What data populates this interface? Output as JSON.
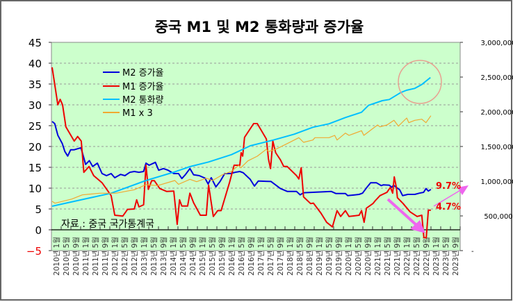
{
  "chart_data": {
    "type": "line",
    "title": "중국 M1 및 M2 통화량과 증가율",
    "source_note": "자료 : 중국 국가통계국",
    "x_labels": [
      "2010년 1월",
      "2010년 5월",
      "2010년 9월",
      "2011년 1월",
      "2011년 5월",
      "2011년 9월",
      "2012년 1월",
      "2012년 5월",
      "2012년 9월",
      "2013년 1월",
      "2013년 5월",
      "2013년 9월",
      "2014년 1월",
      "2014년 5월",
      "2014년 9월",
      "2015년 1월",
      "2015년 5월",
      "2015년 9월",
      "2016년 1월",
      "2016년 5월",
      "2016년 9월",
      "2017년 1월",
      "2017년 5월",
      "2017년 9월",
      "2018년 1월",
      "2018년 5월",
      "2018년 9월",
      "2019년 1월",
      "2019년 5월",
      "2019년 9월",
      "2020년 1월",
      "2020년 5월",
      "2020년 9월",
      "2021년 1월",
      "2021년 5월",
      "2021년 9월",
      "2022년 1월",
      "2022년 5월",
      "2022년 9월",
      "2023년 1월",
      "2023년 5월",
      "2023년 9월"
    ],
    "y_left": {
      "range": [
        -5,
        45
      ],
      "ticks": [
        45,
        40,
        35,
        30,
        25,
        20,
        15,
        10,
        5,
        0,
        -5
      ]
    },
    "y_right": {
      "range": [
        0,
        3000000
      ],
      "ticks": [
        "3,000,000",
        "2,500,000",
        "2,000,000",
        "1,500,000",
        "1,000,000",
        "500,000",
        "-"
      ]
    },
    "grid": true,
    "legend_position": "top-left",
    "series": [
      {
        "name": "M2 증가율",
        "axis": "left",
        "color": "#0000dd",
        "points": [
          [
            0,
            26
          ],
          [
            1,
            25.5
          ],
          [
            2.2,
            22.7
          ],
          [
            3.9,
            20.7
          ],
          [
            4.9,
            18.8
          ],
          [
            6,
            17.7
          ],
          [
            7.1,
            19.2
          ],
          [
            8.4,
            19.2
          ],
          [
            11.1,
            19.7
          ],
          [
            12.9,
            15.7
          ],
          [
            14.3,
            16.6
          ],
          [
            15.6,
            15.2
          ],
          [
            17.4,
            16
          ],
          [
            19.2,
            13.5
          ],
          [
            20.9,
            13
          ],
          [
            22.7,
            13.5
          ],
          [
            24.1,
            12.5
          ],
          [
            26.3,
            13.3
          ],
          [
            28,
            13
          ],
          [
            29.9,
            13.8
          ],
          [
            31.6,
            14
          ],
          [
            33.4,
            13.8
          ],
          [
            35.2,
            14
          ],
          [
            36.1,
            16
          ],
          [
            37.3,
            15.5
          ],
          [
            39.7,
            16.2
          ],
          [
            41,
            14.3
          ],
          [
            42.8,
            14.7
          ],
          [
            44.6,
            14.3
          ],
          [
            46.8,
            13.5
          ],
          [
            48.6,
            13.5
          ],
          [
            49.9,
            12.3
          ],
          [
            51.2,
            13.2
          ],
          [
            53,
            14.7
          ],
          [
            54.4,
            13.2
          ],
          [
            56.6,
            13
          ],
          [
            58.8,
            12.4
          ],
          [
            60,
            11
          ],
          [
            61.2,
            12.5
          ],
          [
            63,
            10.3
          ],
          [
            64.6,
            11.6
          ],
          [
            66.4,
            13.5
          ],
          [
            68.6,
            13.5
          ],
          [
            70.4,
            13.8
          ],
          [
            72.2,
            14
          ],
          [
            73.5,
            13.7
          ],
          [
            76.2,
            12.1
          ],
          [
            77.8,
            10.5
          ],
          [
            79.3,
            11.7
          ],
          [
            84.2,
            11.6
          ],
          [
            87.8,
            9.9
          ],
          [
            90.5,
            9.2
          ],
          [
            94,
            9.2
          ],
          [
            95.4,
            8.4
          ],
          [
            96.7,
            8.9
          ],
          [
            100.3,
            9
          ],
          [
            107.4,
            9.2
          ],
          [
            109.2,
            8.7
          ],
          [
            112.8,
            8.7
          ],
          [
            113.7,
            8.2
          ],
          [
            118.1,
            8.5
          ],
          [
            119.4,
            8.8
          ],
          [
            121.2,
            10.3
          ],
          [
            122.5,
            11.3
          ],
          [
            124.7,
            11.3
          ],
          [
            126.6,
            10.6
          ],
          [
            127.4,
            10.8
          ],
          [
            129.7,
            10.7
          ],
          [
            130.6,
            10.2
          ],
          [
            131.3,
            10.7
          ],
          [
            132.4,
            10.2
          ],
          [
            133.7,
            9.6
          ],
          [
            134.8,
            8.2
          ],
          [
            136.8,
            8.5
          ],
          [
            139.5,
            8.5
          ],
          [
            141.3,
            8.8
          ],
          [
            142.9,
            9
          ],
          [
            143.8,
            9.9
          ],
          [
            144.7,
            9.3
          ],
          [
            145.7,
            9.7
          ]
        ]
      },
      {
        "name": "M1 증가율",
        "axis": "left",
        "color": "#ee0000",
        "points": [
          [
            0,
            39
          ],
          [
            2.2,
            30
          ],
          [
            3.1,
            31.3
          ],
          [
            4,
            30
          ],
          [
            5.3,
            24.7
          ],
          [
            8.5,
            21.3
          ],
          [
            9.8,
            22.4
          ],
          [
            11.2,
            21.3
          ],
          [
            12.2,
            13.8
          ],
          [
            14.2,
            15.2
          ],
          [
            16,
            13
          ],
          [
            19.2,
            11.3
          ],
          [
            22.7,
            8.2
          ],
          [
            24.1,
            3.5
          ],
          [
            27.2,
            3.3
          ],
          [
            29,
            4.9
          ],
          [
            31.6,
            5
          ],
          [
            32.5,
            7.2
          ],
          [
            33.4,
            5.5
          ],
          [
            35.2,
            6
          ],
          [
            36.1,
            15.5
          ],
          [
            37,
            9.7
          ],
          [
            38.3,
            11.8
          ],
          [
            39.3,
            11.8
          ],
          [
            41.4,
            9.9
          ],
          [
            44.1,
            9.2
          ],
          [
            46.8,
            9.3
          ],
          [
            48.1,
            1.3
          ],
          [
            49,
            7.2
          ],
          [
            49.9,
            5.7
          ],
          [
            52.1,
            5.7
          ],
          [
            53,
            8.8
          ],
          [
            54.4,
            6.5
          ],
          [
            57,
            3.5
          ],
          [
            59.3,
            3.5
          ],
          [
            60.2,
            10.7
          ],
          [
            62,
            3.2
          ],
          [
            63.7,
            4.6
          ],
          [
            65,
            4.6
          ],
          [
            68.2,
            11.3
          ],
          [
            70,
            15.5
          ],
          [
            72.2,
            15.5
          ],
          [
            72.7,
            18.5
          ],
          [
            73.3,
            17.7
          ],
          [
            74,
            22.2
          ],
          [
            77.5,
            25.5
          ],
          [
            78.9,
            25.5
          ],
          [
            82.4,
            21.8
          ],
          [
            83.2,
            17
          ],
          [
            84,
            14.7
          ],
          [
            84.9,
            21.3
          ],
          [
            86,
            18.5
          ],
          [
            87.8,
            16.8
          ],
          [
            89.1,
            15.2
          ],
          [
            90.4,
            15.2
          ],
          [
            94,
            13
          ],
          [
            94.9,
            12.2
          ],
          [
            95.8,
            14.9
          ],
          [
            96.7,
            7.9
          ],
          [
            99.4,
            6.3
          ],
          [
            100.5,
            6.4
          ],
          [
            103.4,
            4
          ],
          [
            105.6,
            1.8
          ],
          [
            107.8,
            0.7
          ],
          [
            109.6,
            4.6
          ],
          [
            111,
            3.2
          ],
          [
            112.8,
            4.6
          ],
          [
            114.2,
            3.2
          ],
          [
            118.1,
            3.5
          ],
          [
            119,
            4.6
          ],
          [
            120,
            1.8
          ],
          [
            120.9,
            5.2
          ],
          [
            123.4,
            6.3
          ],
          [
            124.3,
            7
          ],
          [
            126.1,
            8.2
          ],
          [
            128.8,
            9
          ],
          [
            130.1,
            10.2
          ],
          [
            131,
            8.8
          ],
          [
            131.6,
            12.7
          ],
          [
            132.4,
            10.2
          ],
          [
            132.8,
            7.7
          ],
          [
            135,
            6.3
          ],
          [
            137.7,
            4.3
          ],
          [
            140.4,
            3.2
          ],
          [
            142.2,
            3.5
          ],
          [
            143,
            -1.9
          ],
          [
            143.9,
            -1.9
          ],
          [
            144.7,
            4.7
          ],
          [
            145.7,
            4.7
          ]
        ]
      },
      {
        "name": "M2 통화량",
        "axis": "right",
        "color": "#00bfff",
        "points": [
          [
            0,
            640000
          ],
          [
            22.7,
            827000
          ],
          [
            36.1,
            1010000
          ],
          [
            46.8,
            1130000
          ],
          [
            53,
            1210000
          ],
          [
            60.2,
            1277000
          ],
          [
            69,
            1383000
          ],
          [
            76.2,
            1510000
          ],
          [
            85.1,
            1593000
          ],
          [
            93.1,
            1677000
          ],
          [
            100.3,
            1777000
          ],
          [
            106.5,
            1827000
          ],
          [
            112.8,
            1917000
          ],
          [
            119,
            1993000
          ],
          [
            121.7,
            2093000
          ],
          [
            127,
            2160000
          ],
          [
            129.7,
            2177000
          ],
          [
            134.1,
            2277000
          ],
          [
            136.3,
            2310000
          ],
          [
            139.5,
            2337000
          ],
          [
            142.2,
            2393000
          ],
          [
            144.4,
            2460000
          ],
          [
            145.5,
            2493000
          ]
        ]
      },
      {
        "name": "M1 x 3",
        "axis": "right",
        "color": "#f0a830",
        "points": [
          [
            0,
            710000
          ],
          [
            1.1,
            683000
          ],
          [
            7.6,
            743000
          ],
          [
            11.6,
            803000
          ],
          [
            18.3,
            827000
          ],
          [
            24.5,
            827000
          ],
          [
            31.6,
            877000
          ],
          [
            36.1,
            950000
          ],
          [
            40.6,
            937000
          ],
          [
            47.2,
            1010000
          ],
          [
            48.6,
            955000
          ],
          [
            53,
            1027000
          ],
          [
            55.6,
            993000
          ],
          [
            59.3,
            1043000
          ],
          [
            61.7,
            1010000
          ],
          [
            65.5,
            1093000
          ],
          [
            69,
            1143000
          ],
          [
            71.7,
            1227000
          ],
          [
            72.6,
            1193000
          ],
          [
            75.3,
            1293000
          ],
          [
            78.9,
            1360000
          ],
          [
            82.4,
            1460000
          ],
          [
            83.2,
            1427000
          ],
          [
            86,
            1460000
          ],
          [
            90.5,
            1543000
          ],
          [
            94.9,
            1627000
          ],
          [
            96.7,
            1560000
          ],
          [
            100.3,
            1593000
          ],
          [
            101.1,
            1627000
          ],
          [
            106.5,
            1627000
          ],
          [
            108.7,
            1660000
          ],
          [
            109.6,
            1593000
          ],
          [
            112.8,
            1693000
          ],
          [
            114.2,
            1660000
          ],
          [
            119,
            1727000
          ],
          [
            119.9,
            1660000
          ],
          [
            123.4,
            1760000
          ],
          [
            125.2,
            1810000
          ],
          [
            126.1,
            1783000
          ],
          [
            128.8,
            1810000
          ],
          [
            131.5,
            1877000
          ],
          [
            133.2,
            1793000
          ],
          [
            135,
            1860000
          ],
          [
            136.4,
            1910000
          ],
          [
            137.2,
            1843000
          ],
          [
            139.5,
            1877000
          ],
          [
            142.2,
            1893000
          ],
          [
            143.8,
            1843000
          ],
          [
            145.7,
            1943000
          ]
        ]
      }
    ],
    "annotations": [
      {
        "text": "9.7%",
        "color": "#ee0000"
      },
      {
        "text": "4.7%",
        "color": "#ee0000"
      }
    ]
  }
}
